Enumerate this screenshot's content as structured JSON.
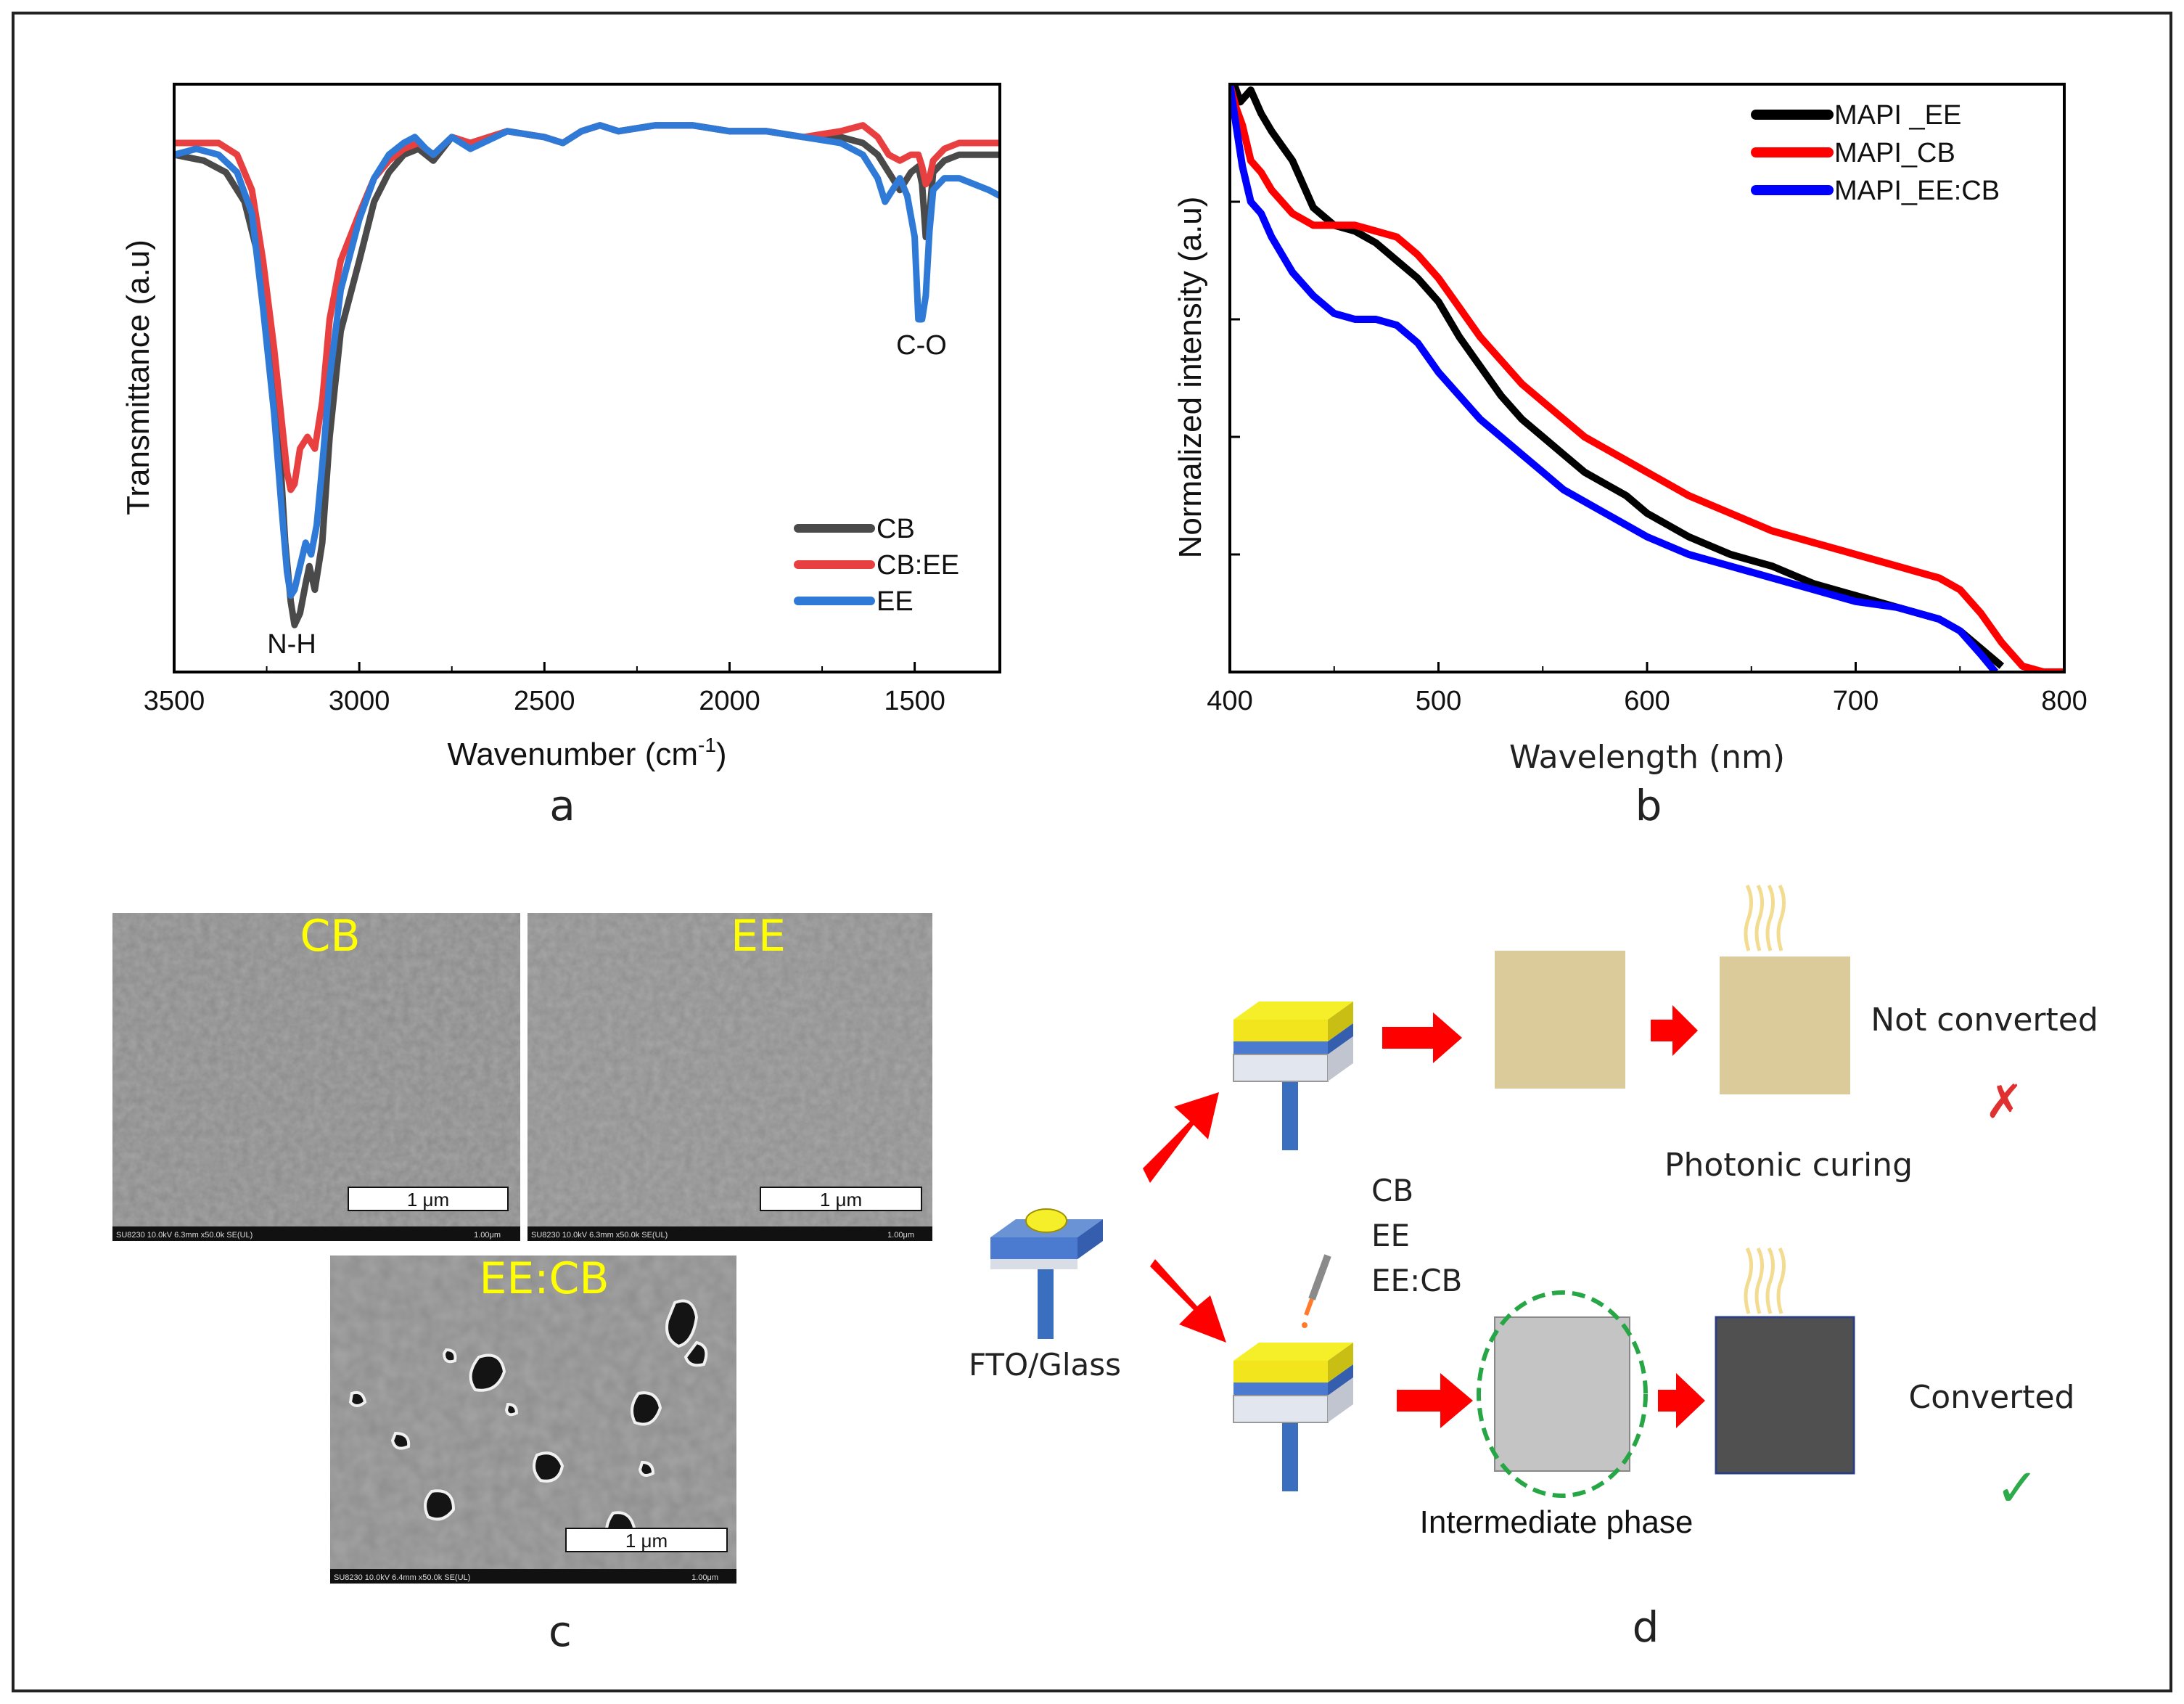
{
  "panels": {
    "a": {
      "label": "a"
    },
    "b": {
      "label": "b"
    },
    "c": {
      "label": "c"
    },
    "d": {
      "label": "d"
    }
  },
  "chart_data": [
    {
      "panel": "a",
      "type": "line",
      "title": "",
      "xlabel": "Wavenumber (cm",
      "xlabel_sup": "-1",
      "xlabel_tail": ")",
      "ylabel": "Transmittance (a.u)",
      "xlim": [
        3500,
        1270
      ],
      "ylim": [
        0,
        100
      ],
      "xticks": [
        3500,
        3000,
        2500,
        2000,
        1500
      ],
      "xtick_labels": [
        "3500",
        "3000",
        "2500",
        "2000",
        "1500"
      ],
      "yticks_shown": false,
      "legend": [
        "CB",
        "CB:EE",
        "EE"
      ],
      "legend_position": "bottom-right",
      "annotations": [
        "N-H",
        "C-O"
      ],
      "series": [
        {
          "name": "CB",
          "color": "#4a4a4a",
          "x": [
            3500,
            3420,
            3360,
            3310,
            3270,
            3240,
            3215,
            3200,
            3185,
            3175,
            3160,
            3145,
            3135,
            3120,
            3100,
            3080,
            3050,
            3000,
            2960,
            2920,
            2880,
            2840,
            2800,
            2750,
            2700,
            2600,
            2500,
            2450,
            2400,
            2350,
            2300,
            2200,
            2100,
            2000,
            1900,
            1800,
            1700,
            1640,
            1600,
            1570,
            1540,
            1510,
            1490,
            1480,
            1470,
            1460,
            1450,
            1420,
            1380,
            1340,
            1300,
            1270
          ],
          "y": [
            88,
            87,
            85,
            80,
            70,
            55,
            38,
            22,
            12,
            8,
            10,
            15,
            18,
            14,
            22,
            40,
            58,
            70,
            80,
            85,
            88,
            89,
            87,
            91,
            90,
            92,
            91,
            90,
            92,
            93,
            92,
            93,
            93,
            92,
            92,
            91,
            91,
            90,
            88,
            85,
            82,
            85,
            86,
            83,
            74,
            78,
            85,
            87,
            88,
            88,
            88,
            88
          ]
        },
        {
          "name": "CB:EE",
          "color": "#e84040",
          "x": [
            3500,
            3420,
            3380,
            3330,
            3290,
            3260,
            3230,
            3210,
            3195,
            3185,
            3175,
            3160,
            3140,
            3120,
            3100,
            3080,
            3050,
            3000,
            2960,
            2920,
            2880,
            2840,
            2800,
            2750,
            2700,
            2600,
            2500,
            2450,
            2400,
            2350,
            2300,
            2200,
            2100,
            2000,
            1900,
            1800,
            1700,
            1640,
            1600,
            1570,
            1540,
            1510,
            1490,
            1480,
            1470,
            1460,
            1450,
            1420,
            1380,
            1340,
            1300,
            1270
          ],
          "y": [
            90,
            90,
            90,
            88,
            82,
            70,
            55,
            43,
            34,
            31,
            32,
            38,
            40,
            38,
            46,
            60,
            70,
            78,
            84,
            87,
            89,
            90,
            88,
            91,
            90,
            92,
            91,
            90,
            92,
            93,
            92,
            93,
            93,
            92,
            92,
            91,
            92,
            93,
            91,
            88,
            87,
            88,
            88,
            86,
            83,
            84,
            87,
            89,
            90,
            90,
            90,
            90
          ]
        },
        {
          "name": "EE",
          "color": "#2f7ad6",
          "x": [
            3500,
            3440,
            3380,
            3330,
            3290,
            3260,
            3230,
            3210,
            3195,
            3185,
            3175,
            3160,
            3145,
            3130,
            3115,
            3100,
            3080,
            3050,
            3000,
            2960,
            2920,
            2880,
            2850,
            2820,
            2800,
            2750,
            2700,
            2600,
            2500,
            2450,
            2400,
            2350,
            2300,
            2200,
            2100,
            2000,
            1900,
            1800,
            1700,
            1640,
            1600,
            1580,
            1560,
            1540,
            1520,
            1500,
            1490,
            1480,
            1470,
            1460,
            1450,
            1420,
            1380,
            1340,
            1300,
            1270
          ],
          "y": [
            88,
            89,
            88,
            85,
            78,
            62,
            44,
            28,
            17,
            13,
            14,
            18,
            22,
            20,
            25,
            35,
            50,
            65,
            77,
            84,
            88,
            90,
            91,
            89,
            88,
            91,
            89,
            92,
            91,
            90,
            92,
            93,
            92,
            93,
            93,
            92,
            92,
            91,
            90,
            88,
            84,
            80,
            82,
            84,
            81,
            74,
            60,
            60,
            64,
            75,
            82,
            84,
            84,
            83,
            82,
            81
          ]
        }
      ]
    },
    {
      "panel": "b",
      "type": "line",
      "title": "",
      "xlabel": "Wavelength (nm)",
      "ylabel": "Normalized intensity (a.u)",
      "xlim": [
        400,
        800
      ],
      "ylim": [
        0,
        1
      ],
      "xticks": [
        400,
        500,
        600,
        700,
        800
      ],
      "xtick_labels": [
        "400",
        "500",
        "600",
        "700",
        "800"
      ],
      "yticks_labels_shown": false,
      "legend": [
        "MAPI _EE",
        "MAPI_CB",
        "MAPI_EE:CB"
      ],
      "legend_position": "top-right",
      "series": [
        {
          "name": "MAPI _EE",
          "color": "#000000",
          "x": [
            402,
            405,
            410,
            415,
            420,
            430,
            440,
            450,
            460,
            470,
            480,
            490,
            500,
            510,
            520,
            530,
            540,
            550,
            560,
            570,
            580,
            590,
            600,
            620,
            640,
            660,
            680,
            700,
            720,
            740,
            750,
            760,
            770
          ],
          "y": [
            1.0,
            0.97,
            0.99,
            0.95,
            0.92,
            0.87,
            0.79,
            0.76,
            0.75,
            0.73,
            0.7,
            0.67,
            0.63,
            0.57,
            0.52,
            0.47,
            0.43,
            0.4,
            0.37,
            0.34,
            0.32,
            0.3,
            0.27,
            0.23,
            0.2,
            0.18,
            0.15,
            0.13,
            0.11,
            0.09,
            0.07,
            0.04,
            0.01
          ]
        },
        {
          "name": "MAPI_CB",
          "color": "#ff0000",
          "x": [
            400,
            403,
            406,
            410,
            415,
            420,
            430,
            440,
            450,
            460,
            470,
            480,
            490,
            500,
            510,
            520,
            530,
            540,
            550,
            560,
            570,
            580,
            590,
            600,
            620,
            640,
            660,
            680,
            700,
            720,
            740,
            750,
            760,
            770,
            780,
            790,
            800
          ],
          "y": [
            1.0,
            0.96,
            0.93,
            0.87,
            0.85,
            0.82,
            0.78,
            0.76,
            0.76,
            0.76,
            0.75,
            0.74,
            0.71,
            0.67,
            0.62,
            0.57,
            0.53,
            0.49,
            0.46,
            0.43,
            0.4,
            0.38,
            0.36,
            0.34,
            0.3,
            0.27,
            0.24,
            0.22,
            0.2,
            0.18,
            0.16,
            0.14,
            0.1,
            0.05,
            0.01,
            0.0,
            0.0
          ]
        },
        {
          "name": "MAPI_EE:CB",
          "color": "#0000ff",
          "x": [
            400,
            403,
            406,
            410,
            415,
            420,
            430,
            440,
            450,
            460,
            470,
            480,
            490,
            500,
            510,
            520,
            530,
            540,
            550,
            560,
            570,
            580,
            590,
            600,
            620,
            640,
            660,
            680,
            700,
            720,
            740,
            750,
            760,
            767
          ],
          "y": [
            1.0,
            0.93,
            0.86,
            0.8,
            0.78,
            0.74,
            0.68,
            0.64,
            0.61,
            0.6,
            0.6,
            0.59,
            0.56,
            0.51,
            0.47,
            0.43,
            0.4,
            0.37,
            0.34,
            0.31,
            0.29,
            0.27,
            0.25,
            0.23,
            0.2,
            0.18,
            0.16,
            0.14,
            0.12,
            0.11,
            0.09,
            0.07,
            0.03,
            0.0
          ]
        }
      ]
    }
  ],
  "sem": {
    "images": [
      {
        "label": "CB",
        "scale": "1 μm",
        "footer_left": "SU8230 10.0kV 6.3mm x50.0k SE(UL)",
        "footer_right": "1.00μm"
      },
      {
        "label": "EE",
        "scale": "1 μm",
        "footer_left": "SU8230 10.0kV 6.3mm x50.0k SE(UL)",
        "footer_right": "1.00μm"
      },
      {
        "label": "EE:CB",
        "scale": "1 μm",
        "footer_left": "SU8230 10.0kV 6.4mm x50.0k SE(UL)",
        "footer_right": "1.00μm"
      }
    ],
    "label_color": "#ffff00"
  },
  "schematic": {
    "substrate_label": "FTO/Glass",
    "solvents": [
      "CB",
      "EE",
      "EE:CB"
    ],
    "top_result": "Not converted",
    "top_mark": "✗",
    "curing_label": "Photonic curing",
    "intermediate_label": "Intermediate phase",
    "bottom_result": "Converted",
    "bottom_mark": "✓",
    "colors": {
      "arrow": "#ff0000",
      "film_yellow": "#f5ef2a",
      "film_tan": "#dccb9a",
      "film_gray": "#c4c4c4",
      "film_dark": "#505050",
      "ring": "#27a645",
      "check": "#2faa4a",
      "cross": "#e03030"
    }
  }
}
